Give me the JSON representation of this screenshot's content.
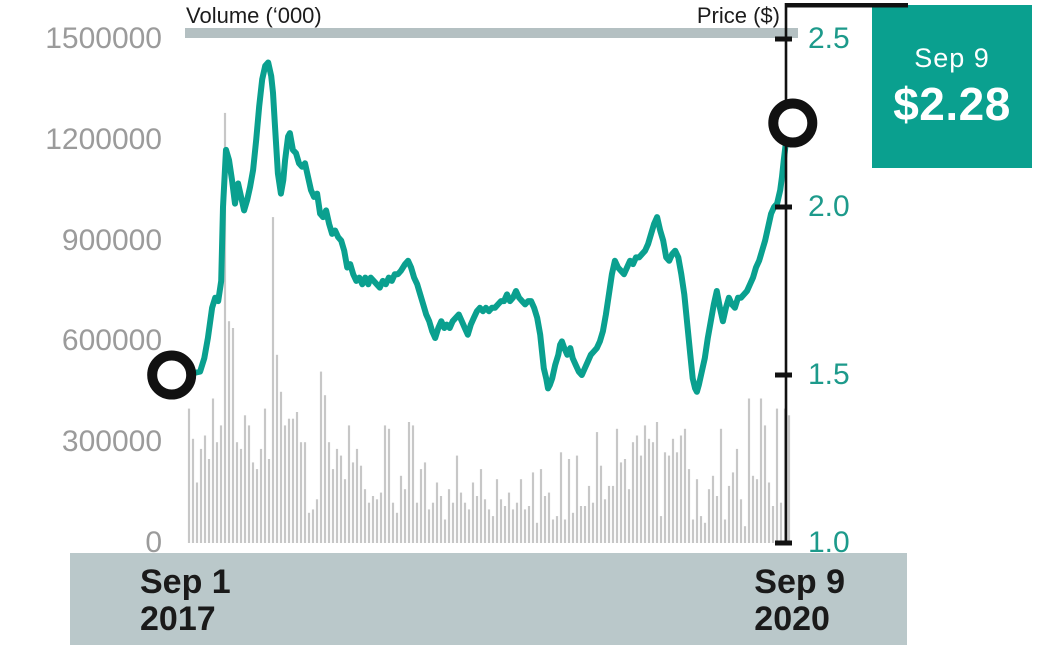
{
  "header": {
    "volume_axis_title": "Volume (‘000)",
    "price_axis_title": "Price ($)"
  },
  "callout": {
    "date": "Sep 9",
    "price": "$2.28"
  },
  "x_axis": {
    "start": {
      "line1": "Sep 1",
      "line2": "2017"
    },
    "end": {
      "line1": "Sep 9",
      "line2": "2020"
    }
  },
  "colors": {
    "teal": "#0aa08f",
    "teal_text": "#1d9a8b",
    "volume_bar": "#c7c7c7",
    "top_gridline": "#b4c0c2",
    "bottom_band": "#bac8ca",
    "axis_black": "#111111",
    "muted_label": "#9b9b9b"
  },
  "chart_data": {
    "type": "line+bar",
    "title": "",
    "x_range_labels": [
      "Sep 1 2017",
      "Sep 9 2020"
    ],
    "grid": "off",
    "price_series": {
      "name": "Price ($)",
      "ylim": [
        1.0,
        2.5
      ],
      "axis_side": "right",
      "tick_labels": [
        "2.5",
        "2.0",
        "1.5",
        "1.0"
      ],
      "tick_values": [
        2.5,
        2.0,
        1.5,
        1.0
      ],
      "last_value": 2.28,
      "points": [
        [
          0,
          1.5
        ],
        [
          0.025,
          1.51
        ],
        [
          0.032,
          1.55
        ],
        [
          0.038,
          1.61
        ],
        [
          0.045,
          1.7
        ],
        [
          0.05,
          1.73
        ],
        [
          0.055,
          1.72
        ],
        [
          0.06,
          1.78
        ],
        [
          0.063,
          2.0
        ],
        [
          0.068,
          2.17
        ],
        [
          0.073,
          2.14
        ],
        [
          0.078,
          2.08
        ],
        [
          0.083,
          2.01
        ],
        [
          0.088,
          2.07
        ],
        [
          0.093,
          2.03
        ],
        [
          0.098,
          1.99
        ],
        [
          0.103,
          2.02
        ],
        [
          0.108,
          2.06
        ],
        [
          0.113,
          2.11
        ],
        [
          0.118,
          2.2
        ],
        [
          0.123,
          2.3
        ],
        [
          0.128,
          2.38
        ],
        [
          0.133,
          2.42
        ],
        [
          0.138,
          2.43
        ],
        [
          0.143,
          2.39
        ],
        [
          0.146,
          2.34
        ],
        [
          0.149,
          2.25
        ],
        [
          0.154,
          2.1
        ],
        [
          0.159,
          2.04
        ],
        [
          0.163,
          2.08
        ],
        [
          0.166,
          2.14
        ],
        [
          0.171,
          2.21
        ],
        [
          0.174,
          2.22
        ],
        [
          0.179,
          2.17
        ],
        [
          0.184,
          2.16
        ],
        [
          0.189,
          2.13
        ],
        [
          0.194,
          2.12
        ],
        [
          0.199,
          2.13
        ],
        [
          0.204,
          2.09
        ],
        [
          0.209,
          2.05
        ],
        [
          0.214,
          2.03
        ],
        [
          0.219,
          2.04
        ],
        [
          0.224,
          1.98
        ],
        [
          0.229,
          1.97
        ],
        [
          0.234,
          1.99
        ],
        [
          0.239,
          1.95
        ],
        [
          0.244,
          1.92
        ],
        [
          0.249,
          1.93
        ],
        [
          0.254,
          1.91
        ],
        [
          0.259,
          1.9
        ],
        [
          0.264,
          1.87
        ],
        [
          0.269,
          1.82
        ],
        [
          0.274,
          1.83
        ],
        [
          0.279,
          1.8
        ],
        [
          0.284,
          1.78
        ],
        [
          0.289,
          1.79
        ],
        [
          0.294,
          1.77
        ],
        [
          0.299,
          1.79
        ],
        [
          0.304,
          1.77
        ],
        [
          0.308,
          1.79
        ],
        [
          0.313,
          1.78
        ],
        [
          0.318,
          1.77
        ],
        [
          0.323,
          1.76
        ],
        [
          0.328,
          1.78
        ],
        [
          0.333,
          1.77
        ],
        [
          0.338,
          1.79
        ],
        [
          0.343,
          1.78
        ],
        [
          0.348,
          1.8
        ],
        [
          0.353,
          1.8
        ],
        [
          0.358,
          1.81
        ],
        [
          0.365,
          1.83
        ],
        [
          0.37,
          1.84
        ],
        [
          0.375,
          1.82
        ],
        [
          0.38,
          1.79
        ],
        [
          0.385,
          1.77
        ],
        [
          0.39,
          1.74
        ],
        [
          0.395,
          1.71
        ],
        [
          0.4,
          1.68
        ],
        [
          0.405,
          1.66
        ],
        [
          0.41,
          1.63
        ],
        [
          0.415,
          1.61
        ],
        [
          0.42,
          1.64
        ],
        [
          0.425,
          1.66
        ],
        [
          0.43,
          1.64
        ],
        [
          0.434,
          1.65
        ],
        [
          0.439,
          1.64
        ],
        [
          0.444,
          1.66
        ],
        [
          0.449,
          1.67
        ],
        [
          0.454,
          1.68
        ],
        [
          0.459,
          1.66
        ],
        [
          0.464,
          1.64
        ],
        [
          0.469,
          1.62
        ],
        [
          0.474,
          1.65
        ],
        [
          0.479,
          1.67
        ],
        [
          0.484,
          1.69
        ],
        [
          0.489,
          1.7
        ],
        [
          0.494,
          1.69
        ],
        [
          0.499,
          1.7
        ],
        [
          0.504,
          1.69
        ],
        [
          0.509,
          1.7
        ],
        [
          0.514,
          1.7
        ],
        [
          0.519,
          1.71
        ],
        [
          0.524,
          1.72
        ],
        [
          0.529,
          1.72
        ],
        [
          0.534,
          1.74
        ],
        [
          0.539,
          1.72
        ],
        [
          0.544,
          1.73
        ],
        [
          0.549,
          1.75
        ],
        [
          0.554,
          1.73
        ],
        [
          0.559,
          1.72
        ],
        [
          0.564,
          1.71
        ],
        [
          0.569,
          1.72
        ],
        [
          0.574,
          1.72
        ],
        [
          0.579,
          1.7
        ],
        [
          0.584,
          1.67
        ],
        [
          0.589,
          1.62
        ],
        [
          0.592,
          1.57
        ],
        [
          0.595,
          1.52
        ],
        [
          0.599,
          1.49
        ],
        [
          0.602,
          1.46
        ],
        [
          0.605,
          1.47
        ],
        [
          0.609,
          1.49
        ],
        [
          0.614,
          1.53
        ],
        [
          0.619,
          1.56
        ],
        [
          0.622,
          1.59
        ],
        [
          0.625,
          1.6
        ],
        [
          0.629,
          1.58
        ],
        [
          0.634,
          1.56
        ],
        [
          0.639,
          1.58
        ],
        [
          0.643,
          1.55
        ],
        [
          0.648,
          1.53
        ],
        [
          0.653,
          1.51
        ],
        [
          0.658,
          1.5
        ],
        [
          0.663,
          1.52
        ],
        [
          0.668,
          1.54
        ],
        [
          0.673,
          1.56
        ],
        [
          0.678,
          1.57
        ],
        [
          0.683,
          1.58
        ],
        [
          0.688,
          1.6
        ],
        [
          0.693,
          1.63
        ],
        [
          0.698,
          1.68
        ],
        [
          0.703,
          1.74
        ],
        [
          0.708,
          1.8
        ],
        [
          0.713,
          1.84
        ],
        [
          0.718,
          1.82
        ],
        [
          0.723,
          1.81
        ],
        [
          0.728,
          1.8
        ],
        [
          0.733,
          1.82
        ],
        [
          0.738,
          1.84
        ],
        [
          0.743,
          1.83
        ],
        [
          0.748,
          1.85
        ],
        [
          0.753,
          1.85
        ],
        [
          0.758,
          1.86
        ],
        [
          0.763,
          1.87
        ],
        [
          0.768,
          1.89
        ],
        [
          0.773,
          1.92
        ],
        [
          0.778,
          1.95
        ],
        [
          0.783,
          1.97
        ],
        [
          0.788,
          1.93
        ],
        [
          0.793,
          1.9
        ],
        [
          0.798,
          1.85
        ],
        [
          0.803,
          1.84
        ],
        [
          0.808,
          1.86
        ],
        [
          0.813,
          1.87
        ],
        [
          0.818,
          1.85
        ],
        [
          0.823,
          1.8
        ],
        [
          0.828,
          1.74
        ],
        [
          0.833,
          1.65
        ],
        [
          0.838,
          1.56
        ],
        [
          0.842,
          1.49
        ],
        [
          0.846,
          1.46
        ],
        [
          0.849,
          1.45
        ],
        [
          0.852,
          1.47
        ],
        [
          0.857,
          1.51
        ],
        [
          0.862,
          1.55
        ],
        [
          0.867,
          1.61
        ],
        [
          0.872,
          1.66
        ],
        [
          0.877,
          1.71
        ],
        [
          0.882,
          1.75
        ],
        [
          0.887,
          1.7
        ],
        [
          0.892,
          1.66
        ],
        [
          0.897,
          1.7
        ],
        [
          0.902,
          1.73
        ],
        [
          0.907,
          1.71
        ],
        [
          0.912,
          1.7
        ],
        [
          0.917,
          1.73
        ],
        [
          0.922,
          1.73
        ],
        [
          0.927,
          1.74
        ],
        [
          0.932,
          1.75
        ],
        [
          0.937,
          1.77
        ],
        [
          0.942,
          1.79
        ],
        [
          0.947,
          1.82
        ],
        [
          0.952,
          1.84
        ],
        [
          0.957,
          1.87
        ],
        [
          0.962,
          1.9
        ],
        [
          0.967,
          1.94
        ],
        [
          0.972,
          1.98
        ],
        [
          0.977,
          2.0
        ],
        [
          0.982,
          2.01
        ],
        [
          0.987,
          2.05
        ],
        [
          0.99,
          2.09
        ],
        [
          0.993,
          2.14
        ],
        [
          0.997,
          2.2
        ],
        [
          1,
          2.26
        ]
      ]
    },
    "volume_series": {
      "name": "Volume (‘000)",
      "ylim": [
        0,
        1500000
      ],
      "axis_side": "left",
      "tick_labels": [
        "1500000",
        "1200000",
        "900000",
        "600000",
        "300000",
        "0"
      ],
      "tick_values": [
        1500000,
        1200000,
        900000,
        600000,
        300000,
        0
      ],
      "values": [
        400000,
        310000,
        180000,
        280000,
        320000,
        250000,
        430000,
        300000,
        350000,
        1280000,
        660000,
        640000,
        300000,
        280000,
        380000,
        350000,
        240000,
        220000,
        280000,
        400000,
        250000,
        970000,
        560000,
        450000,
        350000,
        370000,
        370000,
        390000,
        300000,
        300000,
        90000,
        100000,
        130000,
        510000,
        440000,
        300000,
        220000,
        280000,
        260000,
        190000,
        350000,
        240000,
        280000,
        230000,
        160000,
        120000,
        140000,
        130000,
        150000,
        350000,
        340000,
        120000,
        90000,
        200000,
        160000,
        360000,
        350000,
        120000,
        220000,
        240000,
        100000,
        120000,
        180000,
        140000,
        70000,
        160000,
        120000,
        260000,
        150000,
        120000,
        100000,
        180000,
        140000,
        220000,
        130000,
        100000,
        80000,
        190000,
        130000,
        110000,
        150000,
        100000,
        120000,
        190000,
        100000,
        110000,
        210000,
        60000,
        220000,
        140000,
        150000,
        70000,
        80000,
        270000,
        70000,
        250000,
        90000,
        260000,
        110000,
        110000,
        170000,
        120000,
        330000,
        230000,
        130000,
        170000,
        170000,
        340000,
        240000,
        250000,
        160000,
        300000,
        320000,
        260000,
        350000,
        310000,
        300000,
        360000,
        80000,
        270000,
        260000,
        310000,
        270000,
        320000,
        340000,
        220000,
        70000,
        190000,
        80000,
        60000,
        160000,
        200000,
        140000,
        340000,
        70000,
        170000,
        210000,
        280000,
        130000,
        50000,
        430000,
        200000,
        190000,
        430000,
        350000,
        180000,
        110000,
        400000,
        120000,
        400000,
        380000
      ]
    },
    "annotations": [
      {
        "type": "circle-marker",
        "name": "start-marker",
        "t": -0.022,
        "price": 1.5
      },
      {
        "type": "circle-marker",
        "name": "end-marker",
        "t": 1.008,
        "price": 2.25
      }
    ]
  }
}
